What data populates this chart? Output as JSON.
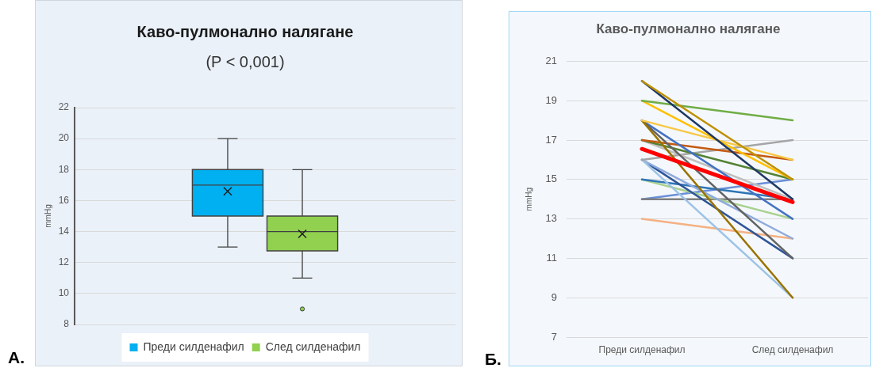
{
  "chart_data": [
    {
      "type": "box",
      "title": "Каво-пулмонално налягане",
      "subtitle": "(P < 0,001)",
      "ylabel": "mmHg",
      "categories": [
        null
      ],
      "series": [
        {
          "name": "Преди силденафил",
          "color": "#00b0f0",
          "boxes": [
            {
              "low": 13,
              "q1": 15,
              "median": 17,
              "q3": 18,
              "high": 20,
              "mean": 16.6
            }
          ]
        },
        {
          "name": "След силденафил",
          "color": "#92d050",
          "boxes": [
            {
              "low": 11,
              "q1": 12.75,
              "median": 14,
              "q3": 15,
              "high": 18,
              "mean": 13.85,
              "outliers": [
                9
              ]
            }
          ]
        }
      ],
      "ylim": [
        8,
        22
      ],
      "yticks": [
        8,
        10,
        12,
        14,
        16,
        18,
        20,
        22
      ],
      "grid": "y",
      "legend": "bottom",
      "tick_labels": "y",
      "annotations": [
        "А."
      ]
    },
    {
      "type": "line",
      "title": "Каво-пулмонално налягане",
      "ylabel": "mmHg",
      "categories": [
        "Преди силденафил",
        "След силденафил"
      ],
      "series": [
        {
          "color": "#ff0000",
          "values": [
            16.55,
            13.85
          ]
        },
        {
          "color": "#bf9000",
          "values": [
            20,
            15
          ]
        },
        {
          "color": "#203864",
          "values": [
            20,
            14
          ]
        },
        {
          "color": "#70ad47",
          "values": [
            19,
            18
          ]
        },
        {
          "color": "#ffc000",
          "values": [
            19,
            15
          ]
        },
        {
          "color": "#f8c846",
          "values": [
            18,
            16
          ]
        },
        {
          "color": "#997300",
          "values": [
            18,
            9
          ]
        },
        {
          "color": "#636363",
          "values": [
            18,
            11
          ]
        },
        {
          "color": "#4472c4",
          "values": [
            18,
            13
          ]
        },
        {
          "color": "#c55a11",
          "values": [
            17,
            16
          ]
        },
        {
          "color": "#548235",
          "values": [
            17,
            15
          ]
        },
        {
          "color": "#bfbfbf",
          "values": [
            17,
            14
          ]
        },
        {
          "color": "#a5a5a5",
          "values": [
            16,
            17
          ]
        },
        {
          "color": "#9dc3e6",
          "values": [
            16,
            9
          ]
        },
        {
          "color": "#8faadc",
          "values": [
            16,
            12
          ]
        },
        {
          "color": "#2f5597",
          "values": [
            16,
            11
          ]
        },
        {
          "color": "#2e75b6",
          "values": [
            15,
            14
          ]
        },
        {
          "color": "#a9d18e",
          "values": [
            15,
            13
          ]
        },
        {
          "color": "#7f7f7f",
          "values": [
            14,
            14
          ]
        },
        {
          "color": "#6a8fd8",
          "values": [
            14,
            15
          ]
        },
        {
          "color": "#f4b183",
          "values": [
            13,
            12
          ]
        }
      ],
      "ylim": [
        7,
        21
      ],
      "yticks": [
        7,
        9,
        11,
        13,
        15,
        17,
        19,
        21
      ],
      "grid": "y",
      "annotations": [
        "Б."
      ]
    }
  ]
}
